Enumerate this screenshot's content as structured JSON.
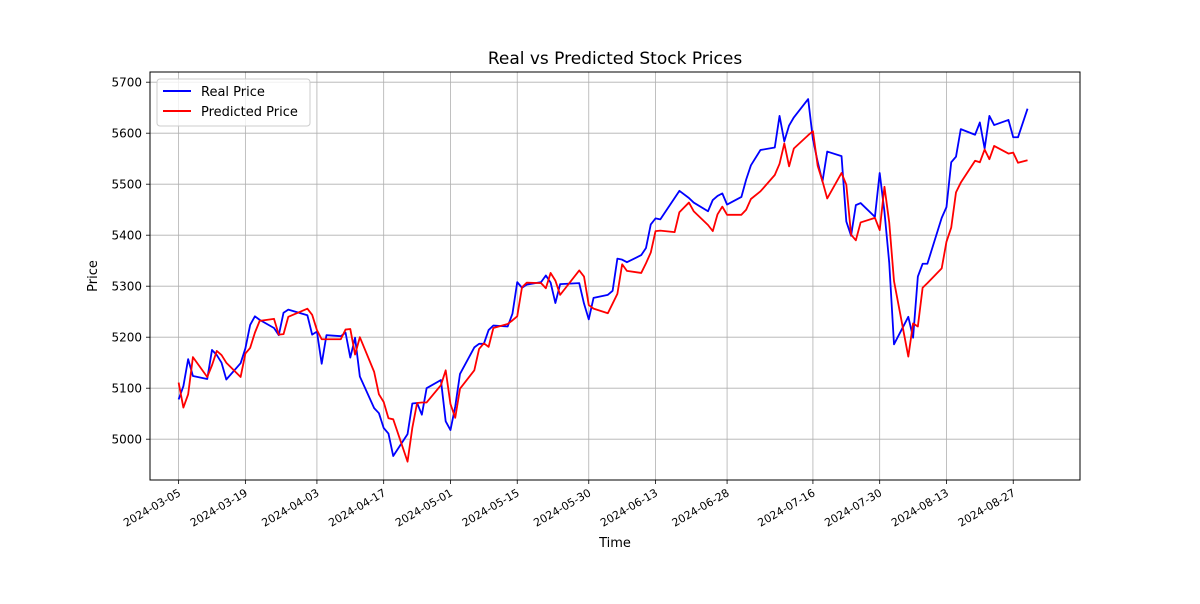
{
  "chart_data": {
    "type": "line",
    "title": "Real vs Predicted Stock Prices",
    "xlabel": "Time",
    "ylabel": "Price",
    "ylim": [
      4920,
      5720
    ],
    "xlim": [
      "2024-02-28",
      "2024-09-10"
    ],
    "x_ticks": [
      "2024-03-05",
      "2024-03-19",
      "2024-04-03",
      "2024-04-17",
      "2024-05-01",
      "2024-05-15",
      "2024-05-30",
      "2024-06-13",
      "2024-06-28",
      "2024-07-16",
      "2024-07-30",
      "2024-08-13",
      "2024-08-27"
    ],
    "y_ticks": [
      5000,
      5100,
      5200,
      5300,
      5400,
      5500,
      5600,
      5700
    ],
    "grid": true,
    "legend_position": "upper-left",
    "series": [
      {
        "name": "Real Price",
        "color": "#0000ff",
        "points": [
          [
            "2024-03-05",
            5078
          ],
          [
            "2024-03-06",
            5104
          ],
          [
            "2024-03-07",
            5157
          ],
          [
            "2024-03-08",
            5124
          ],
          [
            "2024-03-11",
            5118
          ],
          [
            "2024-03-12",
            5175
          ],
          [
            "2024-03-13",
            5165
          ],
          [
            "2024-03-14",
            5150
          ],
          [
            "2024-03-15",
            5117
          ],
          [
            "2024-03-18",
            5149
          ],
          [
            "2024-03-19",
            5178
          ],
          [
            "2024-03-20",
            5224
          ],
          [
            "2024-03-21",
            5241
          ],
          [
            "2024-03-22",
            5234
          ],
          [
            "2024-03-25",
            5218
          ],
          [
            "2024-03-26",
            5204
          ],
          [
            "2024-03-27",
            5248
          ],
          [
            "2024-03-28",
            5254
          ],
          [
            "2024-04-01",
            5243
          ],
          [
            "2024-04-02",
            5205
          ],
          [
            "2024-04-03",
            5211
          ],
          [
            "2024-04-04",
            5148
          ],
          [
            "2024-04-05",
            5204
          ],
          [
            "2024-04-08",
            5202
          ],
          [
            "2024-04-09",
            5209
          ],
          [
            "2024-04-10",
            5160
          ],
          [
            "2024-04-11",
            5199
          ],
          [
            "2024-04-12",
            5123
          ],
          [
            "2024-04-15",
            5061
          ],
          [
            "2024-04-16",
            5051
          ],
          [
            "2024-04-17",
            5022
          ],
          [
            "2024-04-18",
            5011
          ],
          [
            "2024-04-19",
            4967
          ],
          [
            "2024-04-22",
            5010
          ],
          [
            "2024-04-23",
            5070
          ],
          [
            "2024-04-24",
            5071
          ],
          [
            "2024-04-25",
            5048
          ],
          [
            "2024-04-26",
            5100
          ],
          [
            "2024-04-29",
            5116
          ],
          [
            "2024-04-30",
            5035
          ],
          [
            "2024-05-01",
            5018
          ],
          [
            "2024-05-02",
            5064
          ],
          [
            "2024-05-03",
            5128
          ],
          [
            "2024-05-06",
            5180
          ],
          [
            "2024-05-07",
            5187
          ],
          [
            "2024-05-08",
            5187
          ],
          [
            "2024-05-09",
            5214
          ],
          [
            "2024-05-10",
            5223
          ],
          [
            "2024-05-13",
            5221
          ],
          [
            "2024-05-14",
            5246
          ],
          [
            "2024-05-15",
            5308
          ],
          [
            "2024-05-16",
            5297
          ],
          [
            "2024-05-17",
            5303
          ],
          [
            "2024-05-20",
            5308
          ],
          [
            "2024-05-21",
            5321
          ],
          [
            "2024-05-22",
            5307
          ],
          [
            "2024-05-23",
            5267
          ],
          [
            "2024-05-24",
            5304
          ],
          [
            "2024-05-28",
            5306
          ],
          [
            "2024-05-29",
            5266
          ],
          [
            "2024-05-30",
            5235
          ],
          [
            "2024-05-31",
            5277
          ],
          [
            "2024-06-03",
            5283
          ],
          [
            "2024-06-04",
            5291
          ],
          [
            "2024-06-05",
            5354
          ],
          [
            "2024-06-06",
            5352
          ],
          [
            "2024-06-07",
            5347
          ],
          [
            "2024-06-10",
            5361
          ],
          [
            "2024-06-11",
            5375
          ],
          [
            "2024-06-12",
            5421
          ],
          [
            "2024-06-13",
            5433
          ],
          [
            "2024-06-14",
            5431
          ],
          [
            "2024-06-17",
            5473
          ],
          [
            "2024-06-18",
            5487
          ],
          [
            "2024-06-20",
            5473
          ],
          [
            "2024-06-21",
            5464
          ],
          [
            "2024-06-24",
            5447
          ],
          [
            "2024-06-25",
            5469
          ],
          [
            "2024-06-26",
            5477
          ],
          [
            "2024-06-27",
            5482
          ],
          [
            "2024-06-28",
            5460
          ],
          [
            "2024-07-01",
            5475
          ],
          [
            "2024-07-02",
            5509
          ],
          [
            "2024-07-03",
            5537
          ],
          [
            "2024-07-05",
            5567
          ],
          [
            "2024-07-08",
            5572
          ],
          [
            "2024-07-09",
            5634
          ],
          [
            "2024-07-10",
            5584
          ],
          [
            "2024-07-11",
            5615
          ],
          [
            "2024-07-12",
            5631
          ],
          [
            "2024-07-15",
            5667
          ],
          [
            "2024-07-16",
            5588
          ],
          [
            "2024-07-17",
            5544
          ],
          [
            "2024-07-18",
            5505
          ],
          [
            "2024-07-19",
            5564
          ],
          [
            "2024-07-22",
            5555
          ],
          [
            "2024-07-23",
            5427
          ],
          [
            "2024-07-24",
            5399
          ],
          [
            "2024-07-25",
            5459
          ],
          [
            "2024-07-26",
            5463
          ],
          [
            "2024-07-29",
            5436
          ],
          [
            "2024-07-30",
            5522
          ],
          [
            "2024-07-31",
            5446
          ],
          [
            "2024-08-01",
            5346
          ],
          [
            "2024-08-02",
            5186
          ],
          [
            "2024-08-05",
            5240
          ],
          [
            "2024-08-06",
            5199
          ],
          [
            "2024-08-07",
            5319
          ],
          [
            "2024-08-08",
            5344
          ],
          [
            "2024-08-09",
            5344
          ],
          [
            "2024-08-12",
            5434
          ],
          [
            "2024-08-13",
            5455
          ],
          [
            "2024-08-14",
            5543
          ],
          [
            "2024-08-15",
            5554
          ],
          [
            "2024-08-16",
            5608
          ],
          [
            "2024-08-19",
            5597
          ],
          [
            "2024-08-20",
            5621
          ],
          [
            "2024-08-21",
            5570
          ],
          [
            "2024-08-22",
            5634
          ],
          [
            "2024-08-23",
            5616
          ],
          [
            "2024-08-26",
            5626
          ],
          [
            "2024-08-27",
            5592
          ],
          [
            "2024-08-28",
            5592
          ],
          [
            "2024-08-30",
            5648
          ]
        ]
      },
      {
        "name": "Predicted Price",
        "color": "#ff0000",
        "points": [
          [
            "2024-03-05",
            5111
          ],
          [
            "2024-03-06",
            5062
          ],
          [
            "2024-03-07",
            5088
          ],
          [
            "2024-03-08",
            5161
          ],
          [
            "2024-03-11",
            5122
          ],
          [
            "2024-03-12",
            5145
          ],
          [
            "2024-03-13",
            5173
          ],
          [
            "2024-03-14",
            5165
          ],
          [
            "2024-03-15",
            5150
          ],
          [
            "2024-03-18",
            5122
          ],
          [
            "2024-03-19",
            5168
          ],
          [
            "2024-03-20",
            5179
          ],
          [
            "2024-03-21",
            5209
          ],
          [
            "2024-03-22",
            5232
          ],
          [
            "2024-03-25",
            5236
          ],
          [
            "2024-03-26",
            5205
          ],
          [
            "2024-03-27",
            5206
          ],
          [
            "2024-03-28",
            5240
          ],
          [
            "2024-04-01",
            5256
          ],
          [
            "2024-04-02",
            5244
          ],
          [
            "2024-04-03",
            5214
          ],
          [
            "2024-04-04",
            5196
          ],
          [
            "2024-04-05",
            5196
          ],
          [
            "2024-04-08",
            5196
          ],
          [
            "2024-04-09",
            5215
          ],
          [
            "2024-04-10",
            5216
          ],
          [
            "2024-04-11",
            5166
          ],
          [
            "2024-04-12",
            5200
          ],
          [
            "2024-04-15",
            5132
          ],
          [
            "2024-04-16",
            5088
          ],
          [
            "2024-04-17",
            5073
          ],
          [
            "2024-04-18",
            5041
          ],
          [
            "2024-04-19",
            5039
          ],
          [
            "2024-04-22",
            4956
          ],
          [
            "2024-04-23",
            5022
          ],
          [
            "2024-04-24",
            5071
          ],
          [
            "2024-04-25",
            5072
          ],
          [
            "2024-04-26",
            5072
          ],
          [
            "2024-04-29",
            5106
          ],
          [
            "2024-04-30",
            5135
          ],
          [
            "2024-05-01",
            5069
          ],
          [
            "2024-05-02",
            5042
          ],
          [
            "2024-05-03",
            5099
          ],
          [
            "2024-05-06",
            5135
          ],
          [
            "2024-05-07",
            5177
          ],
          [
            "2024-05-08",
            5188
          ],
          [
            "2024-05-09",
            5181
          ],
          [
            "2024-05-10",
            5218
          ],
          [
            "2024-05-13",
            5226
          ],
          [
            "2024-05-14",
            5233
          ],
          [
            "2024-05-15",
            5241
          ],
          [
            "2024-05-16",
            5298
          ],
          [
            "2024-05-17",
            5307
          ],
          [
            "2024-05-20",
            5306
          ],
          [
            "2024-05-21",
            5296
          ],
          [
            "2024-05-22",
            5326
          ],
          [
            "2024-05-23",
            5311
          ],
          [
            "2024-05-24",
            5283
          ],
          [
            "2024-05-28",
            5331
          ],
          [
            "2024-05-29",
            5319
          ],
          [
            "2024-05-30",
            5263
          ],
          [
            "2024-05-31",
            5256
          ],
          [
            "2024-06-03",
            5247
          ],
          [
            "2024-06-04",
            5266
          ],
          [
            "2024-06-05",
            5285
          ],
          [
            "2024-06-06",
            5343
          ],
          [
            "2024-06-07",
            5330
          ],
          [
            "2024-06-10",
            5326
          ],
          [
            "2024-06-11",
            5345
          ],
          [
            "2024-06-12",
            5366
          ],
          [
            "2024-06-13",
            5408
          ],
          [
            "2024-06-14",
            5409
          ],
          [
            "2024-06-17",
            5406
          ],
          [
            "2024-06-18",
            5445
          ],
          [
            "2024-06-20",
            5464
          ],
          [
            "2024-06-21",
            5447
          ],
          [
            "2024-06-24",
            5420
          ],
          [
            "2024-06-25",
            5408
          ],
          [
            "2024-06-26",
            5441
          ],
          [
            "2024-06-27",
            5456
          ],
          [
            "2024-06-28",
            5440
          ],
          [
            "2024-07-01",
            5440
          ],
          [
            "2024-07-02",
            5450
          ],
          [
            "2024-07-03",
            5471
          ],
          [
            "2024-07-05",
            5486
          ],
          [
            "2024-07-08",
            5518
          ],
          [
            "2024-07-09",
            5540
          ],
          [
            "2024-07-10",
            5580
          ],
          [
            "2024-07-11",
            5535
          ],
          [
            "2024-07-12",
            5570
          ],
          [
            "2024-07-15",
            5596
          ],
          [
            "2024-07-16",
            5604
          ],
          [
            "2024-07-17",
            5536
          ],
          [
            "2024-07-18",
            5506
          ],
          [
            "2024-07-19",
            5472
          ],
          [
            "2024-07-22",
            5522
          ],
          [
            "2024-07-23",
            5499
          ],
          [
            "2024-07-24",
            5401
          ],
          [
            "2024-07-25",
            5390
          ],
          [
            "2024-07-26",
            5425
          ],
          [
            "2024-07-29",
            5434
          ],
          [
            "2024-07-30",
            5410
          ],
          [
            "2024-07-31",
            5495
          ],
          [
            "2024-08-01",
            5425
          ],
          [
            "2024-08-02",
            5310
          ],
          [
            "2024-08-05",
            5162
          ],
          [
            "2024-08-06",
            5227
          ],
          [
            "2024-08-07",
            5221
          ],
          [
            "2024-08-08",
            5297
          ],
          [
            "2024-08-09",
            5306
          ],
          [
            "2024-08-12",
            5335
          ],
          [
            "2024-08-13",
            5387
          ],
          [
            "2024-08-14",
            5415
          ],
          [
            "2024-08-15",
            5484
          ],
          [
            "2024-08-16",
            5503
          ],
          [
            "2024-08-19",
            5546
          ],
          [
            "2024-08-20",
            5543
          ],
          [
            "2024-08-21",
            5568
          ],
          [
            "2024-08-22",
            5549
          ],
          [
            "2024-08-23",
            5575
          ],
          [
            "2024-08-26",
            5560
          ],
          [
            "2024-08-27",
            5562
          ],
          [
            "2024-08-28",
            5542
          ],
          [
            "2024-08-30",
            5547
          ]
        ]
      }
    ]
  }
}
